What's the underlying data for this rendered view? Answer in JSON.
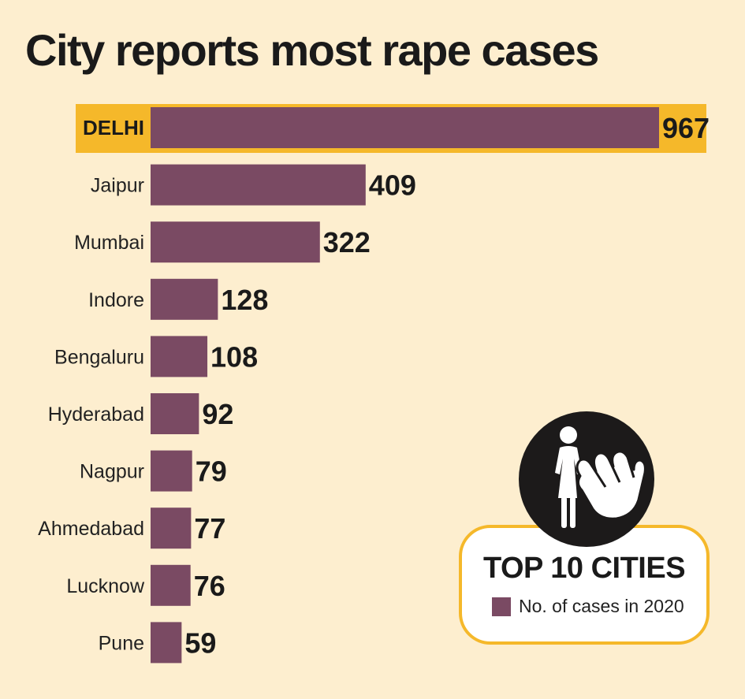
{
  "colors": {
    "background": "#fdeecf",
    "bar": "#7a4a63",
    "highlight": "#f5b82a",
    "badge": "#1c1a1a"
  },
  "chart_data": {
    "type": "bar",
    "orientation": "horizontal",
    "title": "City reports most rape cases",
    "categories": [
      "DELHI",
      "Jaipur",
      "Mumbai",
      "Indore",
      "Bengaluru",
      "Hyderabad",
      "Nagpur",
      "Ahmedabad",
      "Lucknow",
      "Pune"
    ],
    "values": [
      967,
      409,
      322,
      128,
      108,
      92,
      79,
      77,
      76,
      59
    ],
    "highlighted_category": "DELHI",
    "xlim": [
      0,
      967
    ],
    "grid": false,
    "legend": {
      "title": "TOP 10 CITIES",
      "entries": [
        {
          "label": "No. of cases in 2020",
          "color": "#7a4a63"
        }
      ],
      "placement": "bottom-right"
    },
    "badge_icon": "woman-with-stop-hand-icon"
  }
}
